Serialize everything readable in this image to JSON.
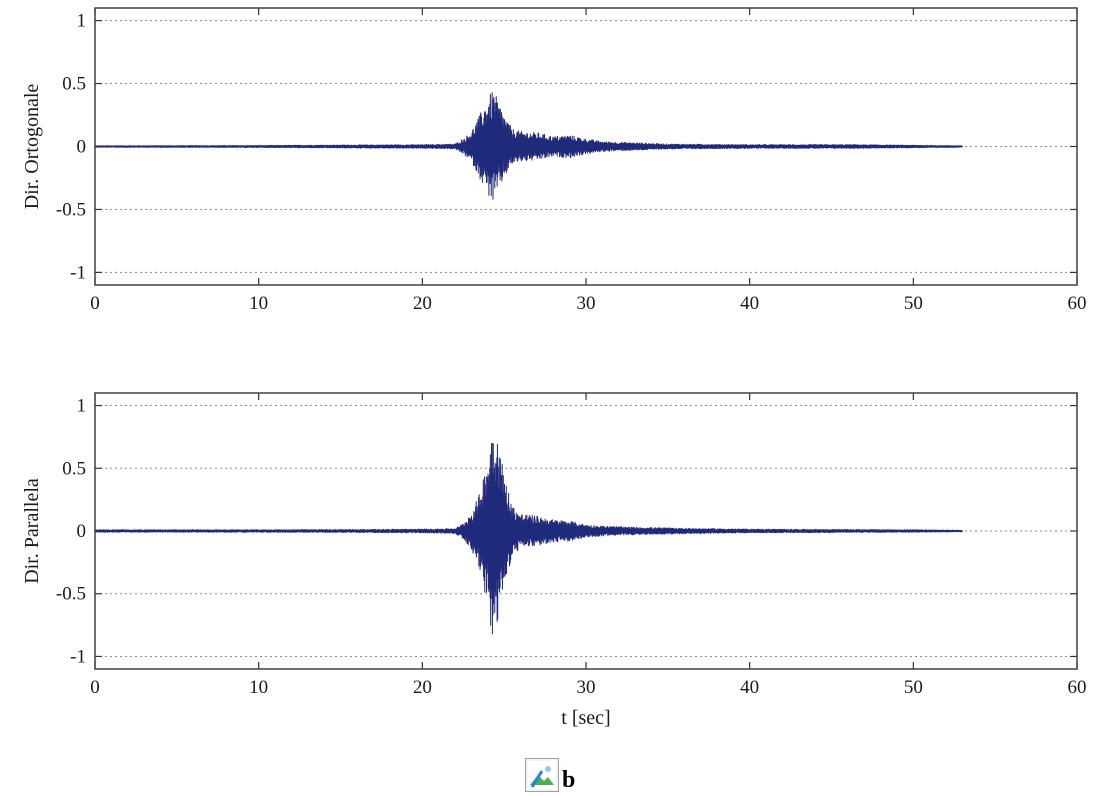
{
  "chart_data": [
    {
      "type": "line",
      "title": "",
      "xlabel": "",
      "ylabel": "Dir. Ortogonale",
      "xlim": [
        0,
        60
      ],
      "ylim": [
        -1.1,
        1.1
      ],
      "x_ticks": [
        0,
        10,
        20,
        30,
        40,
        50,
        60
      ],
      "y_ticks": [
        1,
        0.5,
        0,
        -0.5,
        -1
      ],
      "x_tick_labels": [
        "0",
        "10",
        "20",
        "30",
        "40",
        "50",
        "60"
      ],
      "y_tick_labels": [
        "1",
        "0.5",
        "0",
        "-0.5",
        "-1"
      ],
      "grid": "horizontal dotted",
      "line_color": "#1f2a7a",
      "series": [
        {
          "name": "",
          "x_start": 0,
          "x_end": 53,
          "envelope": [
            [
              0,
              0.006
            ],
            [
              10,
              0.008
            ],
            [
              15,
              0.012
            ],
            [
              20,
              0.015
            ],
            [
              22,
              0.02
            ],
            [
              22.5,
              0.06
            ],
            [
              23,
              0.12
            ],
            [
              23.5,
              0.25
            ],
            [
              24,
              0.38
            ],
            [
              24.3,
              0.45
            ],
            [
              24.5,
              0.4
            ],
            [
              25,
              0.25
            ],
            [
              25.5,
              0.14
            ],
            [
              26,
              0.12
            ],
            [
              27,
              0.11
            ],
            [
              28,
              0.08
            ],
            [
              29,
              0.09
            ],
            [
              30,
              0.06
            ],
            [
              31,
              0.04
            ],
            [
              33,
              0.03
            ],
            [
              35,
              0.02
            ],
            [
              40,
              0.015
            ],
            [
              46.5,
              0.015
            ],
            [
              50,
              0.01
            ],
            [
              53,
              0.006
            ]
          ]
        }
      ]
    },
    {
      "type": "line",
      "title": "",
      "xlabel": "t [sec]",
      "ylabel": "Dir. Parallela",
      "xlim": [
        0,
        60
      ],
      "ylim": [
        -1.1,
        1.1
      ],
      "x_ticks": [
        0,
        10,
        20,
        30,
        40,
        50,
        60
      ],
      "y_ticks": [
        1,
        0.5,
        0,
        -0.5,
        -1
      ],
      "x_tick_labels": [
        "0",
        "10",
        "20",
        "30",
        "40",
        "50",
        "60"
      ],
      "y_tick_labels": [
        "1",
        "0.5",
        "0",
        "-0.5",
        "-1"
      ],
      "grid": "horizontal dotted",
      "line_color": "#1f2a7a",
      "series": [
        {
          "name": "",
          "x_start": 0,
          "x_end": 53,
          "envelope": [
            [
              0,
              0.01
            ],
            [
              10,
              0.01
            ],
            [
              15,
              0.012
            ],
            [
              20,
              0.015
            ],
            [
              22,
              0.02
            ],
            [
              22.5,
              0.06
            ],
            [
              23,
              0.15
            ],
            [
              23.5,
              0.3
            ],
            [
              24,
              0.6
            ],
            [
              24.3,
              0.9
            ],
            [
              24.5,
              0.85
            ],
            [
              25,
              0.45
            ],
            [
              25.5,
              0.2
            ],
            [
              26,
              0.14
            ],
            [
              27,
              0.12
            ],
            [
              28,
              0.09
            ],
            [
              29,
              0.08
            ],
            [
              30,
              0.05
            ],
            [
              31,
              0.04
            ],
            [
              33,
              0.03
            ],
            [
              35,
              0.025
            ],
            [
              37,
              0.02
            ],
            [
              40,
              0.015
            ],
            [
              46.5,
              0.012
            ],
            [
              50,
              0.01
            ],
            [
              53,
              0.006
            ]
          ]
        }
      ]
    }
  ],
  "caption": {
    "icon": "broken-image-icon",
    "text": "b"
  }
}
